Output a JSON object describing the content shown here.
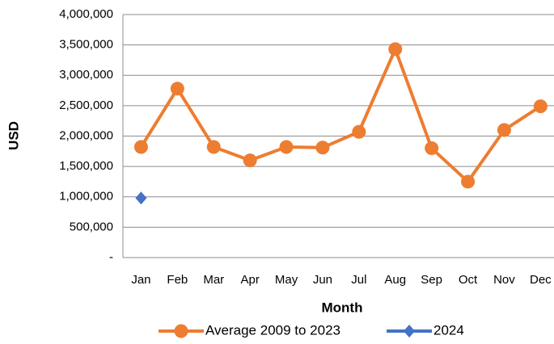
{
  "chart_data": {
    "type": "line",
    "categories": [
      "Jan",
      "Feb",
      "Mar",
      "Apr",
      "May",
      "Jun",
      "Jul",
      "Aug",
      "Sep",
      "Oct",
      "Nov",
      "Dec"
    ],
    "series": [
      {
        "name": "Average 2009 to 2023",
        "color": "#ed7d31",
        "marker": "circle",
        "values": [
          1820000,
          2780000,
          1820000,
          1600000,
          1820000,
          1810000,
          2070000,
          3430000,
          1800000,
          1250000,
          2100000,
          2490000
        ]
      },
      {
        "name": "2024",
        "color": "#4472c4",
        "marker": "diamond",
        "values": [
          980000,
          null,
          null,
          null,
          null,
          null,
          null,
          null,
          null,
          null,
          null,
          null
        ]
      }
    ],
    "ylabel": "USD",
    "xlabel": "Month",
    "ylim": [
      0,
      4000000
    ],
    "yticks": [
      {
        "value": 0,
        "label": "-"
      },
      {
        "value": 500000,
        "label": "500,000"
      },
      {
        "value": 1000000,
        "label": "1,000,000"
      },
      {
        "value": 1500000,
        "label": "1,500,000"
      },
      {
        "value": 2000000,
        "label": "2,000,000"
      },
      {
        "value": 2500000,
        "label": "2,500,000"
      },
      {
        "value": 3000000,
        "label": "3,000,000"
      },
      {
        "value": 3500000,
        "label": "3,500,000"
      },
      {
        "value": 4000000,
        "label": "4,000,000"
      }
    ],
    "grid": true,
    "legend": "bottom"
  }
}
